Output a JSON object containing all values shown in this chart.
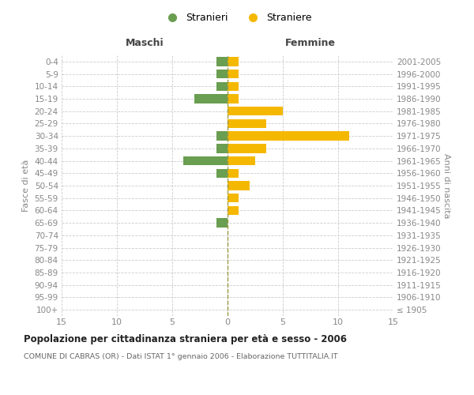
{
  "age_groups": [
    "100+",
    "95-99",
    "90-94",
    "85-89",
    "80-84",
    "75-79",
    "70-74",
    "65-69",
    "60-64",
    "55-59",
    "50-54",
    "45-49",
    "40-44",
    "35-39",
    "30-34",
    "25-29",
    "20-24",
    "15-19",
    "10-14",
    "5-9",
    "0-4"
  ],
  "birth_years": [
    "≤ 1905",
    "1906-1910",
    "1911-1915",
    "1916-1920",
    "1921-1925",
    "1926-1930",
    "1931-1935",
    "1936-1940",
    "1941-1945",
    "1946-1950",
    "1951-1955",
    "1956-1960",
    "1961-1965",
    "1966-1970",
    "1971-1975",
    "1976-1980",
    "1981-1985",
    "1986-1990",
    "1991-1995",
    "1996-2000",
    "2001-2005"
  ],
  "maschi": [
    0,
    0,
    0,
    0,
    0,
    0,
    0,
    1,
    0,
    0,
    0,
    1,
    4,
    1,
    1,
    0,
    0,
    3,
    1,
    1,
    1
  ],
  "femmine": [
    0,
    0,
    0,
    0,
    0,
    0,
    0,
    0,
    1,
    1,
    2,
    1,
    2.5,
    3.5,
    11,
    3.5,
    5,
    1,
    1,
    1,
    1
  ],
  "male_color": "#6a9e50",
  "female_color": "#f5b800",
  "xlim": 15,
  "title": "Popolazione per cittadinanza straniera per età e sesso - 2006",
  "subtitle": "COMUNE DI CABRAS (OR) - Dati ISTAT 1° gennaio 2006 - Elaborazione TUTTITALIA.IT",
  "xlabel_left": "Maschi",
  "xlabel_right": "Femmine",
  "ylabel_left": "Fasce di età",
  "ylabel_right": "Anni di nascita",
  "legend_male": "Stranieri",
  "legend_female": "Straniere",
  "bg_color": "#ffffff",
  "grid_color": "#cccccc",
  "tick_color": "#888888",
  "title_color": "#222222",
  "subtitle_color": "#666666",
  "header_color": "#444444"
}
